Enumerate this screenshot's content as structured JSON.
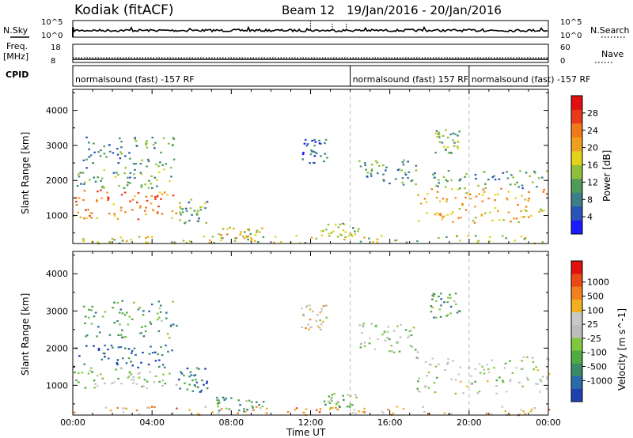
{
  "chart_data": {
    "type": "heatmap",
    "header": {
      "station": "Kodiak (fitACF)",
      "beam": "Beam 12",
      "date_range": "19/Jan/2016 - 20/Jan/2016"
    },
    "x_axis": {
      "label": "Time UT",
      "ticks": [
        "00:00",
        "04:00",
        "08:00",
        "12:00",
        "16:00",
        "20:00",
        "00:00"
      ],
      "range_hours": [
        0,
        24
      ]
    },
    "strip_panels": {
      "nsky": {
        "left_label": "N.Sky",
        "left_ticks": [
          "10^5",
          "10^0"
        ],
        "right_label": "N.Search",
        "right_ticks": [
          "10^5",
          "10^0"
        ]
      },
      "freq": {
        "left_label": "Freq.",
        "left_unit": "[MHz]",
        "left_ticks": [
          "18",
          "8"
        ],
        "right_label": "Nave",
        "right_ticks": [
          "60",
          "0"
        ]
      },
      "cpid": {
        "label": "CPID",
        "segments": [
          {
            "start": 0.0,
            "end": 14.0,
            "text": "normalsound (fast) -157 RF"
          },
          {
            "start": 14.0,
            "end": 20.0,
            "text": "normalsound (fast) 157 RF"
          },
          {
            "start": 20.0,
            "end": 24.0,
            "text": "normalsound (fast) -157 RF"
          }
        ]
      }
    },
    "panels": [
      {
        "name": "Power",
        "ylabel": "Slant Range [km]",
        "yticks": [
          "1000",
          "2000",
          "3000",
          "4000"
        ],
        "ylim": [
          200,
          4600
        ],
        "colorbar_label": "Power [dB]",
        "colorbar_ticks": [
          "4",
          "8",
          "12",
          "16",
          "20",
          "24",
          "28"
        ],
        "colorbar_range": [
          0,
          32
        ],
        "colors": [
          "#1a1aff",
          "#2a55b8",
          "#3a7f8a",
          "#4f9a58",
          "#8fbf3a",
          "#e3d21c",
          "#f0a020",
          "#f07a1a",
          "#e83a1a",
          "#e01010"
        ],
        "regions": [
          {
            "t": [
              0.0,
              5.2
            ],
            "r": [
              900,
              1800
            ],
            "level": 0.72
          },
          {
            "t": [
              0.0,
              5.0
            ],
            "r": [
              1800,
              2500
            ],
            "level": 0.35
          },
          {
            "t": [
              0.5,
              5.2
            ],
            "r": [
              2500,
              3300
            ],
            "level": 0.3
          },
          {
            "t": [
              5.3,
              6.8
            ],
            "r": [
              800,
              1500
            ],
            "level": 0.35
          },
          {
            "t": [
              7.2,
              9.6
            ],
            "r": [
              300,
              700
            ],
            "level": 0.55
          },
          {
            "t": [
              11.5,
              12.8
            ],
            "r": [
              2500,
              3200
            ],
            "level": 0.2
          },
          {
            "t": [
              12.5,
              14.4
            ],
            "r": [
              400,
              800
            ],
            "level": 0.45
          },
          {
            "t": [
              14.4,
              17.5
            ],
            "r": [
              1900,
              2600
            ],
            "level": 0.3
          },
          {
            "t": [
              17.3,
              24.0
            ],
            "r": [
              800,
              1800
            ],
            "level": 0.62
          },
          {
            "t": [
              18.0,
              24.0
            ],
            "r": [
              1800,
              2300
            ],
            "level": 0.3
          },
          {
            "t": [
              18.0,
              19.5
            ],
            "r": [
              2800,
              3500
            ],
            "level": 0.4
          },
          {
            "t": [
              0.0,
              24.0
            ],
            "r": [
              220,
              450
            ],
            "level": 0.5
          }
        ]
      },
      {
        "name": "Velocity",
        "ylabel": "Slant Range [km]",
        "yticks": [
          "1000",
          "2000",
          "3000",
          "4000"
        ],
        "ylim": [
          200,
          4600
        ],
        "colorbar_label": "Velocity [m s^-1]",
        "colorbar_ticks": [
          "1000",
          "500",
          "100",
          "25",
          "-25",
          "-100",
          "-500",
          "-1000"
        ],
        "colors": [
          "#2040b0",
          "#2a6aa8",
          "#3a8a6a",
          "#4faa40",
          "#80c840",
          "#bdbdbd",
          "#c8c8c8",
          "#f0b020",
          "#f08020",
          "#e84a18",
          "#e01010"
        ],
        "regions": [
          {
            "t": [
              0.0,
              5.2
            ],
            "r": [
              900,
              1500
            ],
            "level": 0.45
          },
          {
            "t": [
              0.0,
              5.0
            ],
            "r": [
              1500,
              2100
            ],
            "level": 0.12
          },
          {
            "t": [
              0.5,
              5.2
            ],
            "r": [
              2300,
              3300
            ],
            "level": 0.3
          },
          {
            "t": [
              5.3,
              6.8
            ],
            "r": [
              800,
              1500
            ],
            "level": 0.2
          },
          {
            "t": [
              7.2,
              9.6
            ],
            "r": [
              300,
              700
            ],
            "level": 0.3
          },
          {
            "t": [
              11.5,
              12.8
            ],
            "r": [
              2500,
              3200
            ],
            "level": 0.6
          },
          {
            "t": [
              12.5,
              14.4
            ],
            "r": [
              400,
              800
            ],
            "level": 0.35
          },
          {
            "t": [
              14.4,
              17.5
            ],
            "r": [
              1900,
              2700
            ],
            "level": 0.47
          },
          {
            "t": [
              17.3,
              24.0
            ],
            "r": [
              800,
              1800
            ],
            "level": 0.48
          },
          {
            "t": [
              18.0,
              19.5
            ],
            "r": [
              2800,
              3500
            ],
            "level": 0.3
          },
          {
            "t": [
              0.0,
              24.0
            ],
            "r": [
              220,
              450
            ],
            "level": 0.7
          }
        ]
      }
    ],
    "dashed_times": [
      14.0,
      20.0
    ]
  }
}
